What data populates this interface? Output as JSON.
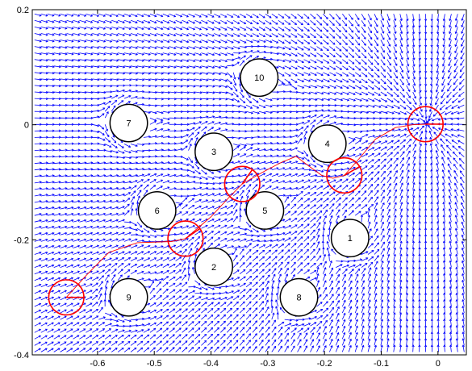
{
  "chart_data": {
    "type": "vector-field",
    "title": "",
    "xlabel": "",
    "ylabel": "",
    "xlim": [
      -0.715,
      0.05
    ],
    "ylim": [
      -0.4,
      0.2
    ],
    "xticks": [
      -0.6,
      -0.5,
      -0.4,
      -0.3,
      -0.2,
      -0.1,
      0
    ],
    "xtick_labels": [
      "-0.6",
      "-0.5",
      "-0.4",
      "-0.3",
      "-0.2",
      "-0.1",
      "0"
    ],
    "yticks": [
      0.2,
      0,
      -0.2,
      -0.4
    ],
    "ytick_labels": [
      "0.2",
      "0",
      "-0.2",
      "-0.4"
    ],
    "grid": false,
    "colors": {
      "field": "#0000ff",
      "obstacle": "#000000",
      "path": "#ff0000",
      "robot": "#ff0000"
    },
    "obstacle_radius": 0.033,
    "obstacles": [
      {
        "label": "1",
        "x": -0.155,
        "y": -0.197
      },
      {
        "label": "2",
        "x": -0.395,
        "y": -0.247
      },
      {
        "label": "3",
        "x": -0.395,
        "y": -0.047
      },
      {
        "label": "4",
        "x": -0.195,
        "y": -0.033
      },
      {
        "label": "5",
        "x": -0.305,
        "y": -0.149
      },
      {
        "label": "6",
        "x": -0.495,
        "y": -0.149
      },
      {
        "label": "7",
        "x": -0.545,
        "y": 0.003
      },
      {
        "label": "8",
        "x": -0.245,
        "y": -0.3
      },
      {
        "label": "9",
        "x": -0.545,
        "y": -0.3
      },
      {
        "label": "10",
        "x": -0.315,
        "y": 0.082
      }
    ],
    "goal": {
      "x": -0.02,
      "y": 0.003
    },
    "robot_radius": 0.031,
    "robot_positions": [
      {
        "x": -0.655,
        "y": -0.3,
        "heading_deg": 0
      },
      {
        "x": -0.445,
        "y": -0.198,
        "heading_deg": 35
      },
      {
        "x": -0.345,
        "y": -0.103,
        "heading_deg": 55
      },
      {
        "x": -0.165,
        "y": -0.088,
        "heading_deg": 30
      },
      {
        "x": -0.022,
        "y": 0.001,
        "heading_deg": 0
      }
    ],
    "path": [
      {
        "x": -0.655,
        "y": -0.3
      },
      {
        "x": -0.62,
        "y": -0.262
      },
      {
        "x": -0.58,
        "y": -0.222
      },
      {
        "x": -0.53,
        "y": -0.205
      },
      {
        "x": -0.47,
        "y": -0.203
      },
      {
        "x": -0.445,
        "y": -0.198
      },
      {
        "x": -0.4,
        "y": -0.16
      },
      {
        "x": -0.37,
        "y": -0.128
      },
      {
        "x": -0.345,
        "y": -0.103
      },
      {
        "x": -0.31,
        "y": -0.083
      },
      {
        "x": -0.275,
        "y": -0.065
      },
      {
        "x": -0.25,
        "y": -0.055
      },
      {
        "x": -0.23,
        "y": -0.07
      },
      {
        "x": -0.205,
        "y": -0.088
      },
      {
        "x": -0.185,
        "y": -0.093
      },
      {
        "x": -0.165,
        "y": -0.088
      },
      {
        "x": -0.14,
        "y": -0.06
      },
      {
        "x": -0.11,
        "y": -0.025
      },
      {
        "x": -0.075,
        "y": -0.005
      },
      {
        "x": -0.045,
        "y": 0.0
      },
      {
        "x": -0.022,
        "y": 0.001
      }
    ]
  }
}
